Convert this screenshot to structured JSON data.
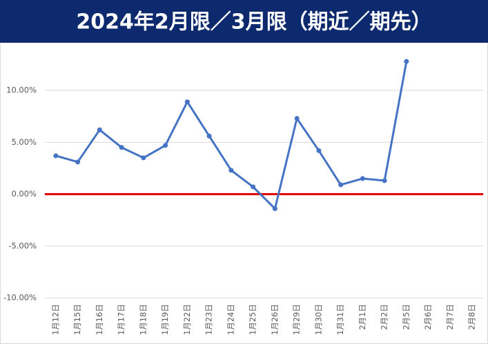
{
  "chart_data": {
    "type": "line",
    "title": "2024年2月限／3月限（期近／期先）",
    "categories": [
      "1月12日",
      "1月15日",
      "1月16日",
      "1月17日",
      "1月18日",
      "1月19日",
      "1月22日",
      "1月23日",
      "1月24日",
      "1月25日",
      "1月26日",
      "1月29日",
      "1月30日",
      "1月31日",
      "2月1日",
      "2月2日",
      "2月5日",
      "2月6日",
      "2月7日",
      "2月8日"
    ],
    "series": [
      {
        "color": "#4472c4",
        "values": [
          3.7,
          3.1,
          6.2,
          4.5,
          3.5,
          4.7,
          8.9,
          5.6,
          2.3,
          0.7,
          -1.4,
          7.3,
          4.2,
          0.9,
          1.5,
          1.3,
          12.8,
          null,
          null,
          null
        ]
      }
    ],
    "ylim": [
      -10,
      14.6
    ],
    "yticks": [
      {
        "value": -10,
        "label": "-10.00%"
      },
      {
        "value": -5,
        "label": "-5.00%"
      },
      {
        "value": 0,
        "label": "0.00%"
      },
      {
        "value": 5,
        "label": "5.00%"
      },
      {
        "value": 10,
        "label": "10.00%"
      }
    ],
    "grid": true,
    "zero_line_color": "#e00000"
  }
}
